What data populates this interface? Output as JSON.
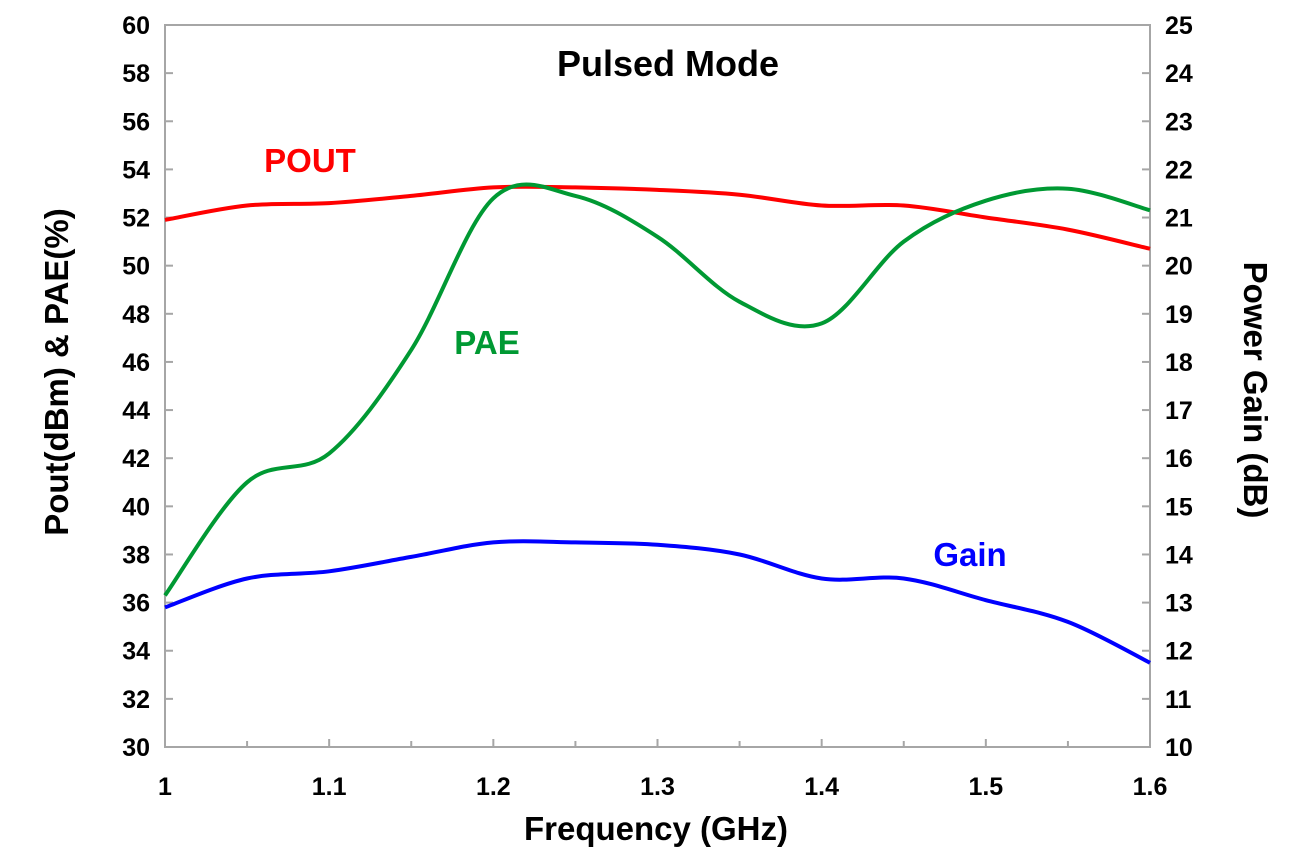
{
  "chart_data": {
    "type": "line",
    "title": "Pulsed Mode",
    "xlabel": "Frequency (GHz)",
    "ylabel_left": "Pout(dBm) & PAE(%)",
    "ylabel_right": "Power Gain (dB)",
    "xlim": [
      1.0,
      1.6
    ],
    "ylim_left": [
      30,
      60
    ],
    "ylim_right": [
      10,
      25
    ],
    "x_ticks": [
      "1",
      "1.1",
      "1.2",
      "1.3",
      "1.4",
      "1.5",
      "1.6"
    ],
    "y_ticks_left": [
      "30",
      "32",
      "34",
      "36",
      "38",
      "40",
      "42",
      "44",
      "46",
      "48",
      "50",
      "52",
      "54",
      "56",
      "58",
      "60"
    ],
    "y_ticks_right": [
      "10",
      "11",
      "12",
      "13",
      "14",
      "15",
      "16",
      "17",
      "18",
      "19",
      "20",
      "21",
      "22",
      "23",
      "24",
      "25"
    ],
    "grid": false,
    "series": [
      {
        "name": "POUT",
        "axis": "left",
        "color": "#ff0000",
        "x": [
          1.0,
          1.05,
          1.1,
          1.15,
          1.2,
          1.25,
          1.3,
          1.35,
          1.4,
          1.45,
          1.5,
          1.55,
          1.6
        ],
        "values": [
          51.9,
          52.5,
          52.6,
          52.9,
          53.25,
          53.25,
          53.15,
          52.95,
          52.5,
          52.5,
          52.0,
          51.5,
          50.7
        ]
      },
      {
        "name": "PAE",
        "axis": "left",
        "color": "#009933",
        "x": [
          1.0,
          1.05,
          1.1,
          1.15,
          1.2,
          1.25,
          1.3,
          1.35,
          1.4,
          1.45,
          1.5,
          1.55,
          1.6
        ],
        "values": [
          36.3,
          41.0,
          42.2,
          46.5,
          52.8,
          52.9,
          51.2,
          48.5,
          47.6,
          51.0,
          52.7,
          53.2,
          52.3
        ]
      },
      {
        "name": "Gain",
        "axis": "right",
        "color": "#0000ff",
        "x": [
          1.0,
          1.05,
          1.1,
          1.15,
          1.2,
          1.25,
          1.3,
          1.35,
          1.4,
          1.45,
          1.5,
          1.55,
          1.6
        ],
        "values": [
          12.9,
          13.5,
          13.65,
          13.95,
          14.25,
          14.25,
          14.2,
          14.0,
          13.5,
          13.5,
          13.05,
          12.6,
          11.75
        ]
      }
    ]
  }
}
